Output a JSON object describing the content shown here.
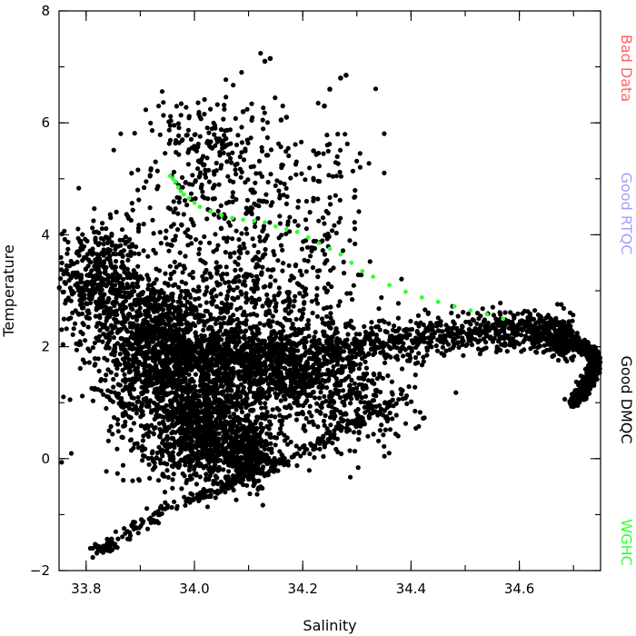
{
  "chart_data": {
    "type": "scatter",
    "title": "",
    "xlabel": "Salinity",
    "ylabel": "Temperature",
    "xlim": [
      33.75,
      34.75
    ],
    "ylim": [
      -2,
      8
    ],
    "x_ticks": [
      33.8,
      34.0,
      34.2,
      34.4,
      34.6
    ],
    "x_tick_labels": [
      "33.8",
      "34.0",
      "34.2",
      "34.4",
      "34.6"
    ],
    "x_minor_step": 0.1,
    "y_ticks": [
      -2,
      0,
      2,
      4,
      6,
      8
    ],
    "y_tick_labels": [
      "−2",
      "0",
      "2",
      "4",
      "6",
      "8"
    ],
    "y_minor_step": 1,
    "grid": false,
    "legend_placement": "right-vertical",
    "legend": [
      {
        "label": "Bad Data",
        "color": "#ff6060"
      },
      {
        "label": "Good RTQC",
        "color": "#a0a0ff"
      },
      {
        "label": "Good DMQC",
        "color": "#000000"
      },
      {
        "label": "WGHC",
        "color": "#33ff33"
      }
    ],
    "series": [
      {
        "name": "Good DMQC",
        "color": "#000000",
        "description_of_distribution": "dense cloud of points (several thousand); tongue 33.76-33.95 at 1.5-3.5, curved upper branch 34.0-34.74 near 2.0-2.5 ending at 34.70 ~1.0, lower wedge 33.85-34.15 at -0.5-1.5, sparse scatter up to 7.2",
        "clusters": [
          {
            "cx": 33.82,
            "cy": 3.2,
            "sx": 0.04,
            "sy": 0.5,
            "n": 450
          },
          {
            "cx": 33.92,
            "cy": 2.2,
            "sx": 0.05,
            "sy": 0.5,
            "n": 650
          },
          {
            "cx": 33.98,
            "cy": 1.2,
            "sx": 0.07,
            "sy": 0.6,
            "n": 850
          },
          {
            "cx": 34.02,
            "cy": 0.3,
            "sx": 0.05,
            "sy": 0.4,
            "n": 550
          },
          {
            "cx": 34.1,
            "cy": 0.1,
            "sx": 0.03,
            "sy": 0.3,
            "n": 300
          },
          {
            "cx": 34.08,
            "cy": 1.5,
            "sx": 0.08,
            "sy": 0.5,
            "n": 500
          },
          {
            "cx": 34.2,
            "cy": 1.4,
            "sx": 0.06,
            "sy": 0.35,
            "n": 350
          },
          {
            "cx": 34.3,
            "cy": 1.0,
            "sx": 0.06,
            "sy": 0.5,
            "n": 200
          },
          {
            "cx": 34.05,
            "cy": 2.6,
            "sx": 0.1,
            "sy": 0.5,
            "n": 350
          },
          {
            "cx": 34.15,
            "cy": 3.1,
            "sx": 0.1,
            "sy": 0.6,
            "n": 160
          },
          {
            "cx": 34.05,
            "cy": 4.6,
            "sx": 0.1,
            "sy": 0.8,
            "n": 260
          },
          {
            "cx": 34.02,
            "cy": 5.8,
            "sx": 0.05,
            "sy": 0.4,
            "n": 110
          },
          {
            "cx": 34.25,
            "cy": 4.8,
            "sx": 0.05,
            "sy": 0.7,
            "n": 30
          }
        ],
        "upper_branch": [
          [
            33.95,
            1.8
          ],
          [
            34.05,
            1.85
          ],
          [
            34.15,
            1.95
          ],
          [
            34.25,
            2.0
          ],
          [
            34.35,
            2.1
          ],
          [
            34.45,
            2.2
          ],
          [
            34.55,
            2.3
          ],
          [
            34.62,
            2.3
          ],
          [
            34.67,
            2.2
          ],
          [
            34.7,
            2.1
          ],
          [
            34.72,
            2.0
          ],
          [
            34.74,
            1.8
          ],
          [
            34.735,
            1.5
          ],
          [
            34.72,
            1.25
          ],
          [
            34.7,
            1.0
          ]
        ],
        "lower_diagonal": [
          [
            33.82,
            -1.65
          ],
          [
            33.95,
            -0.9
          ],
          [
            34.1,
            -0.3
          ],
          [
            34.25,
            0.4
          ],
          [
            34.4,
            1.2
          ]
        ],
        "upper_scatter": [
          [
            34.14,
            7.15
          ],
          [
            34.13,
            7.1
          ],
          [
            34.27,
            6.8
          ],
          [
            34.28,
            6.85
          ],
          [
            34.25,
            6.6
          ],
          [
            34.24,
            6.3
          ],
          [
            34.16,
            6.05
          ],
          [
            34.17,
            6.1
          ],
          [
            34.09,
            6.2
          ],
          [
            34.22,
            5.5
          ]
        ]
      },
      {
        "name": "WGHC",
        "color": "#33ff33",
        "points": [
          [
            33.955,
            5.05
          ],
          [
            33.96,
            5.0
          ],
          [
            33.965,
            4.95
          ],
          [
            33.97,
            4.85
          ],
          [
            33.975,
            4.78
          ],
          [
            33.98,
            4.72
          ],
          [
            33.99,
            4.65
          ],
          [
            34.0,
            4.57
          ],
          [
            34.01,
            4.5
          ],
          [
            34.03,
            4.42
          ],
          [
            34.05,
            4.35
          ],
          [
            34.07,
            4.3
          ],
          [
            34.09,
            4.27
          ],
          [
            34.11,
            4.25
          ],
          [
            34.13,
            4.22
          ],
          [
            34.15,
            4.15
          ],
          [
            34.17,
            4.1
          ],
          [
            34.19,
            4.05
          ],
          [
            34.21,
            3.95
          ],
          [
            34.23,
            3.85
          ],
          [
            34.25,
            3.75
          ],
          [
            34.27,
            3.65
          ],
          [
            34.29,
            3.5
          ],
          [
            34.31,
            3.35
          ],
          [
            34.33,
            3.25
          ],
          [
            34.36,
            3.1
          ],
          [
            34.39,
            2.98
          ],
          [
            34.42,
            2.88
          ],
          [
            34.45,
            2.8
          ],
          [
            34.48,
            2.72
          ],
          [
            34.51,
            2.65
          ],
          [
            34.54,
            2.58
          ],
          [
            34.57,
            2.5
          ]
        ]
      }
    ]
  }
}
